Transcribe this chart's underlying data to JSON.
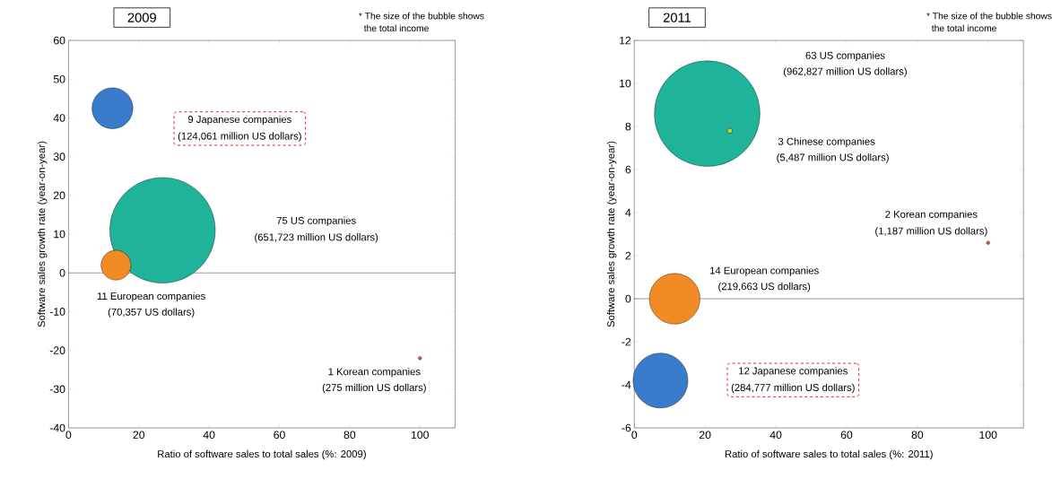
{
  "chart_data": [
    {
      "type": "bubble",
      "title": "2009",
      "xlabel": "Ratio of software sales to total sales (%: 2009)",
      "ylabel": "Software sales growth rate (year-on-year)",
      "x": [
        12.5,
        26.75,
        13.5,
        100
      ],
      "values": [
        42.5,
        11,
        2,
        -22
      ],
      "sizes": [
        0.15,
        1,
        0.08,
        0.001
      ],
      "colors": [
        "#3a7ccc",
        "#1fb39a",
        "#f28a26",
        "#e0584a"
      ],
      "xlim": [
        0,
        110
      ],
      "ylim": [
        -40,
        60
      ],
      "xticks": [
        0,
        20,
        40,
        60,
        80,
        100
      ],
      "yticks": [
        -40,
        -30,
        -20,
        -10,
        0,
        10,
        20,
        30,
        40,
        50,
        60
      ],
      "ref_lines": [
        {
          "axis": "y",
          "value": 0,
          "color": "#000000"
        }
      ],
      "annotations": [
        "* The size of the bubble shows",
        "the total income",
        "9 Japanese companies",
        "(124,061 million US dollars)",
        "75 US companies",
        "(651,723 million US dollars)",
        "11 European companies",
        "(70,357 US dollars)",
        "1 Korean companies",
        "(275 million US dollars)"
      ]
    },
    {
      "type": "bubble",
      "title": "2011",
      "xlabel": "Ratio of software sales to total sales (%: 2011)",
      "ylabel": "Software sales growth rate (year-on-year)",
      "x": [
        20.6,
        27,
        100,
        11.4,
        7.4
      ],
      "values": [
        8.6,
        7.8,
        2.6,
        0,
        -3.8
      ],
      "sizes": [
        1,
        0.0025,
        0.001,
        0.23,
        0.27
      ],
      "colors": [
        "#1fb39a",
        "#b8d43a",
        "#e0584a",
        "#f28a26",
        "#3a7ccc"
      ],
      "xlim": [
        0,
        110
      ],
      "ylim": [
        -6,
        12
      ],
      "xticks": [
        0,
        20,
        40,
        60,
        80,
        100
      ],
      "yticks": [
        -6,
        -4,
        -2,
        0,
        2,
        4,
        6,
        8,
        10,
        12
      ],
      "ref_lines": [
        {
          "axis": "y",
          "value": 0,
          "color": "#000000"
        }
      ],
      "annotations": [
        "* The size of the bubble shows",
        "the total income",
        "63 US companies",
        "(962,827 million US dollars)",
        "3 Chinese companies",
        "(5,487 million US dollars)",
        "2 Korean companies",
        "(1,187 million US dollars)",
        "14 European companies",
        "(219,663 US dollars)",
        "12 Japanese companies",
        "(284,777 million US dollars)"
      ]
    }
  ]
}
